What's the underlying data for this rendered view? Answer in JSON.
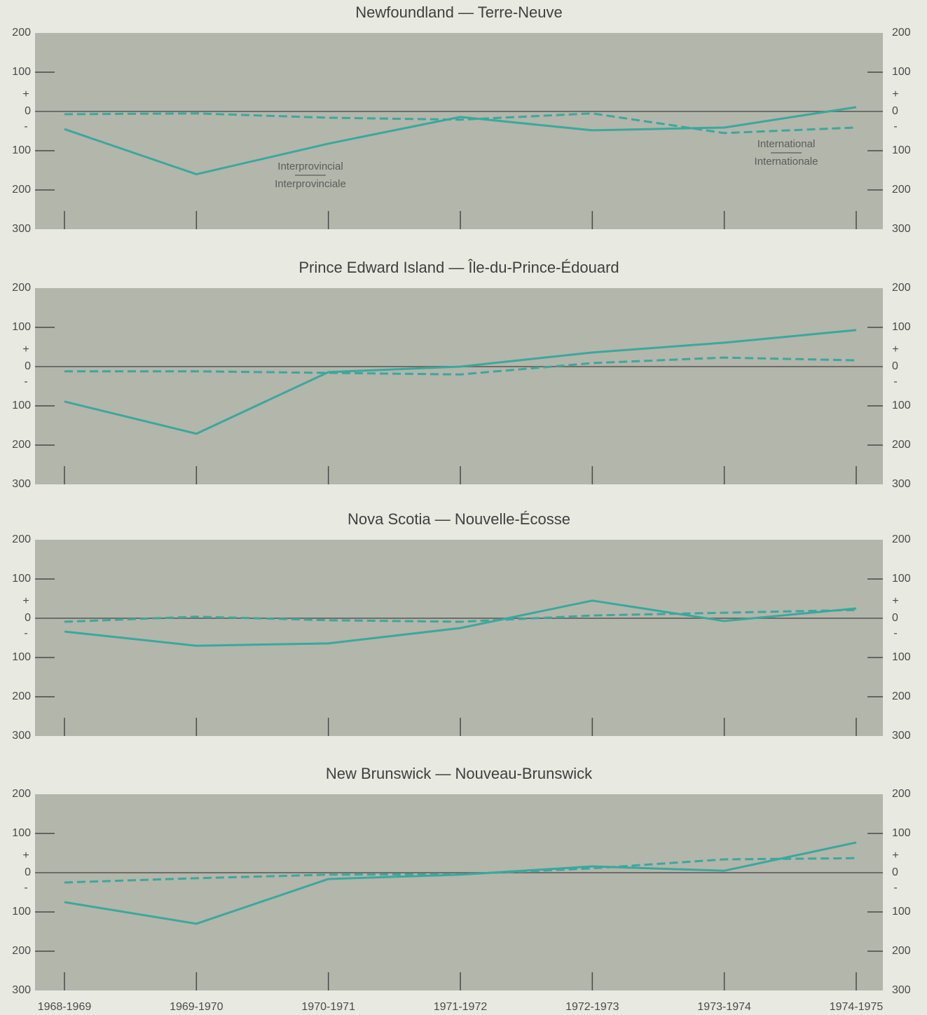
{
  "axis_signs": {
    "plus": "+",
    "minus": "-"
  },
  "chart_data": [
    {
      "type": "line",
      "title": "Newfoundland — Terre-Neuve",
      "ylim": [
        -300,
        200
      ],
      "yticks": [
        200,
        100,
        0,
        {
          "value": -100,
          "label": "100"
        },
        {
          "value": -200,
          "label": "200"
        },
        {
          "value": -300,
          "label": "300"
        }
      ],
      "series": [
        {
          "name": "Interprovincial",
          "name_alt": "Interprovinciale",
          "color": "#3aa89e",
          "dashed": false,
          "values": [
            -45,
            -160,
            -82,
            -14,
            -48,
            -41,
            11
          ]
        },
        {
          "name": "International",
          "name_alt": "Internationale",
          "color": "#3aa89e",
          "dashed": true,
          "values": [
            -7,
            -5,
            -16,
            -21,
            -5,
            -55,
            -41
          ]
        }
      ]
    },
    {
      "type": "line",
      "title": "Prince Edward Island — Île-du-Prince-Édouard",
      "ylim": [
        -300,
        200
      ],
      "yticks": [
        200,
        100,
        0,
        {
          "value": -100,
          "label": "100"
        },
        {
          "value": -200,
          "label": "200"
        },
        {
          "value": -300,
          "label": "300"
        }
      ],
      "series": [
        {
          "color": "#3aa89e",
          "dashed": false,
          "values": [
            -89,
            -171,
            -14,
            0,
            36,
            61,
            93
          ]
        },
        {
          "color": "#3aa89e",
          "dashed": true,
          "values": [
            -12,
            -12,
            -16,
            -20,
            9,
            23,
            16
          ]
        }
      ]
    },
    {
      "type": "line",
      "title": "Nova Scotia — Nouvelle-Écosse",
      "ylim": [
        -300,
        200
      ],
      "yticks": [
        200,
        100,
        0,
        {
          "value": -100,
          "label": "100"
        },
        {
          "value": -200,
          "label": "200"
        },
        {
          "value": -300,
          "label": "300"
        }
      ],
      "series": [
        {
          "color": "#3aa89e",
          "dashed": false,
          "values": [
            -34,
            -70,
            -64,
            -25,
            45,
            -7,
            25
          ]
        },
        {
          "color": "#3aa89e",
          "dashed": true,
          "values": [
            -9,
            4,
            -5,
            -9,
            7,
            14,
            21
          ]
        }
      ]
    },
    {
      "type": "line",
      "title": "New Brunswick — Nouveau-Brunswick",
      "ylim": [
        -300,
        200
      ],
      "yticks": [
        200,
        100,
        0,
        {
          "value": -100,
          "label": "100"
        },
        {
          "value": -200,
          "label": "200"
        },
        {
          "value": -300,
          "label": "300"
        }
      ],
      "categories": [
        "1968-1969",
        "1969-1970",
        "1970-1971",
        "1971-1972",
        "1972-1973",
        "1973-1974",
        "1974-1975"
      ],
      "series": [
        {
          "color": "#3aa89e",
          "dashed": false,
          "values": [
            -75,
            -130,
            -16,
            -5,
            16,
            5,
            77
          ]
        },
        {
          "color": "#3aa89e",
          "dashed": true,
          "values": [
            -25,
            -14,
            -5,
            -4,
            11,
            34,
            37
          ]
        }
      ]
    }
  ]
}
